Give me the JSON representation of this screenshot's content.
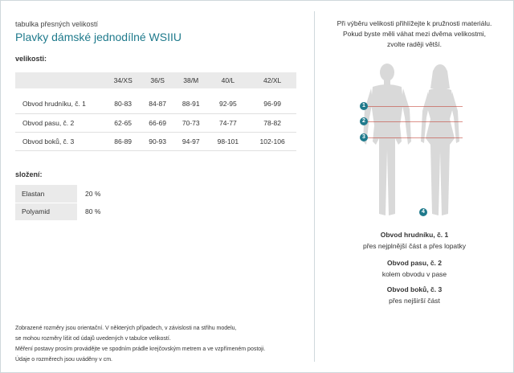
{
  "header": {
    "subtitle": "tabulka přesných velikostí",
    "title": "Plavky dámské jednodílné WSIIU"
  },
  "sizes": {
    "label": "velikosti:",
    "columns": [
      "",
      "34/XS",
      "36/S",
      "38/M",
      "40/L",
      "42/XL"
    ],
    "rows": [
      {
        "name": "Obvod hrudníku, č. 1",
        "values": [
          "80-83",
          "84-87",
          "88-91",
          "92-95",
          "96-99"
        ]
      },
      {
        "name": "Obvod pasu, č. 2",
        "values": [
          "62-65",
          "66-69",
          "70-73",
          "74-77",
          "78-82"
        ]
      },
      {
        "name": "Obvod boků, č. 3",
        "values": [
          "86-89",
          "90-93",
          "94-97",
          "98-101",
          "102-106"
        ]
      }
    ]
  },
  "composition": {
    "label": "složení:",
    "items": [
      {
        "name": "Elastan",
        "value": "20 %"
      },
      {
        "name": "Polyamid",
        "value": "80 %"
      }
    ]
  },
  "notes": [
    "Zobrazené rozměry jsou orientační. V některých případech, v závislosti na střihu modelu,",
    "se mohou rozměry lišit od údajů uvedených v tabulce velikostí.",
    "Měření postavy prosím provádějte ve spodním prádle krejčovským metrem a ve vzpřímeném postoji.",
    "Údaje o rozměrech jsou uváděny v cm."
  ],
  "intro": [
    "Při výběru velikosti přihlížejte k pružnosti materiálu.",
    "Pokud byste měli váhat mezi dvěma velikostmi,",
    "zvolte raději větší."
  ],
  "figure": {
    "markers": [
      "1",
      "2",
      "3",
      "4"
    ]
  },
  "legend": [
    {
      "title": "Obvod hrudníku, č. 1",
      "desc": "přes nejplnější část a přes lopatky"
    },
    {
      "title": "Obvod pasu, č. 2",
      "desc": "kolem obvodu v pase"
    },
    {
      "title": "Obvod boků, č. 3",
      "desc": "přes nejširší část"
    }
  ],
  "colors": {
    "accent": "#1f7a8c",
    "figure": "#d9d9d9",
    "measure_line": "#c0392b"
  }
}
